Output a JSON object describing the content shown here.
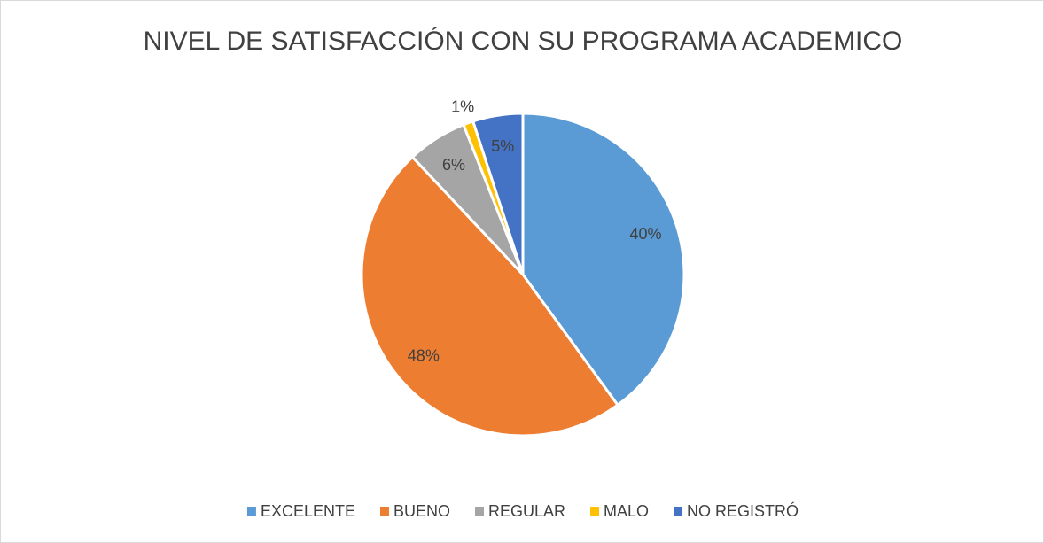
{
  "chart_data": {
    "type": "pie",
    "title": "NIVEL DE SATISFACCIÓN CON SU PROGRAMA ACADEMICO",
    "categories": [
      "EXCELENTE",
      "BUENO",
      "REGULAR",
      "MALO",
      "NO REGISTRÓ"
    ],
    "values": [
      40,
      48,
      6,
      1,
      5
    ],
    "value_labels": [
      "40%",
      "48%",
      "6%",
      "1%",
      "5%"
    ],
    "colors": [
      "#5b9bd5",
      "#ed7d31",
      "#a5a5a5",
      "#ffc000",
      "#4472c4"
    ],
    "legend": "bottom"
  }
}
